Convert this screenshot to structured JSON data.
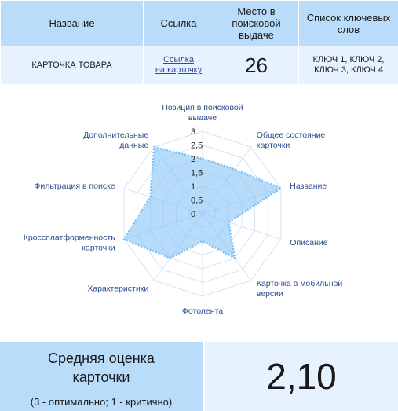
{
  "table": {
    "headers": [
      "Название",
      "Ссылка",
      "Место в поисковой выдаче",
      "Список ключевых слов"
    ],
    "row": {
      "name": "КАРТОЧКА ТОВАРА",
      "link_line1": "Ссылка",
      "link_line2": "на карточку",
      "place": "26",
      "keywords_line1": "КЛЮЧ 1, КЛЮЧ 2,",
      "keywords_line2": "КЛЮЧ 3, КЛЮЧ 4"
    }
  },
  "chart_data": {
    "type": "radar",
    "axes": [
      "Позиция в поисковой выдаче",
      "Общее состояние карточки",
      "Название",
      "Описание",
      "Карточка в мобильной версии",
      "Фотолента",
      "Характеристики",
      "Кроссплатформенность карточки",
      "Фильтрация в поиске",
      "Дополнительные данные"
    ],
    "ticks": [
      "0",
      "0,5",
      "1",
      "1,5",
      "2",
      "2,5",
      "3"
    ],
    "rmax": 3,
    "series": [
      {
        "values": [
          2,
          2,
          3,
          1,
          2,
          1,
          2,
          3,
          2,
          3
        ],
        "color": "#7cc0f5"
      }
    ],
    "grid": true,
    "legend": "none"
  },
  "summary": {
    "title_line1": "Средняя оценка",
    "title_line2": "карточки",
    "note": "(3 - оптимально; 1 - критично)",
    "value": "2,10"
  }
}
